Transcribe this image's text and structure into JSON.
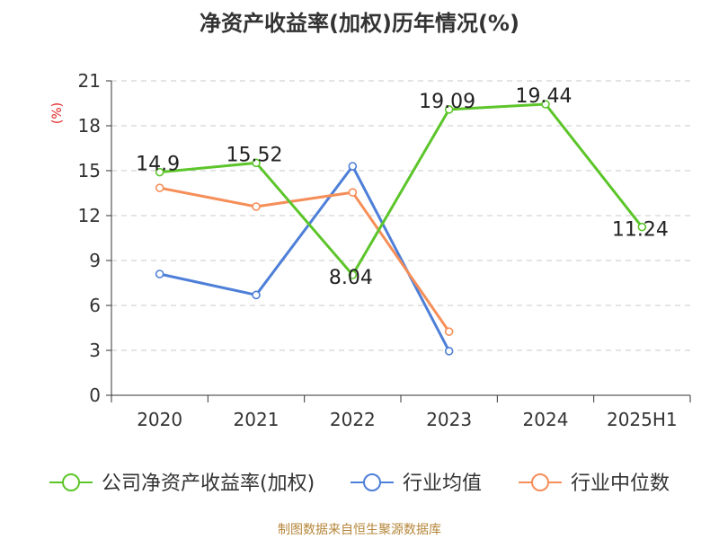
{
  "chart_data": {
    "type": "line",
    "title": "净资产收益率(加权)历年情况(%)",
    "ylabel": "(%)",
    "categories": [
      "2020",
      "2021",
      "2022",
      "2023",
      "2024",
      "2025H1"
    ],
    "ylim": [
      0,
      21
    ],
    "yticks": [
      0,
      3,
      6,
      9,
      12,
      15,
      18,
      21
    ],
    "grid": true,
    "legend_position": "bottom",
    "series": [
      {
        "name": "公司净资产收益率(加权)",
        "color": "#5cc52a",
        "values": [
          14.9,
          15.52,
          8.04,
          19.09,
          19.44,
          11.24
        ],
        "labels": [
          "14.9",
          "15.52",
          "8.04",
          "19.09",
          "19.44",
          "11.24"
        ]
      },
      {
        "name": "行业均值",
        "color": "#4e7fd8",
        "values": [
          8.1,
          6.7,
          15.3,
          2.95,
          null,
          null
        ]
      },
      {
        "name": "行业中位数",
        "color": "#f68e58",
        "values": [
          13.85,
          12.6,
          13.55,
          4.25,
          null,
          null
        ]
      }
    ]
  },
  "footer": "制图数据来自恒生聚源数据库"
}
